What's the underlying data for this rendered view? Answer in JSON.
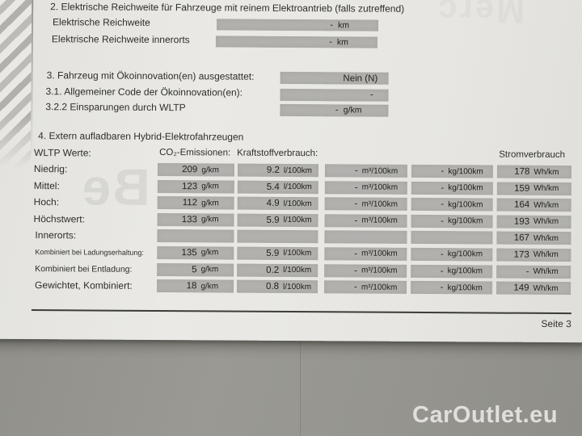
{
  "page": {
    "number_label": "Seite 3",
    "watermark": "CarOutlet.eu"
  },
  "ghosts": {
    "middle_left": "Be",
    "top_right": "Merc"
  },
  "section2": {
    "title": "2. Elektrische Reichweite für Fahrzeuge mit reinem Elektroantrieb (falls zutreffend)",
    "fields": [
      {
        "label": "Elektrische Reichweite",
        "value": "-",
        "unit": "km"
      },
      {
        "label": "Elektrische Reichweite innerorts",
        "value": "-",
        "unit": "km"
      }
    ]
  },
  "section3": {
    "fields": [
      {
        "label": "3. Fahrzeug mit Ökoinnovation(en) ausgestattet:",
        "value": "Nein (N)",
        "unit": ""
      },
      {
        "label": "3.1. Allgemeiner Code der Ökoinnovation(en):",
        "value": "-",
        "unit": ""
      },
      {
        "label": "3.2.2 Einsparungen durch WLTP",
        "value": "-",
        "unit": "g/km"
      }
    ]
  },
  "section4": {
    "title": "4. Extern aufladbaren Hybrid-Elektrofahrzeugen",
    "header": {
      "wltp": "WLTP Werte:",
      "co2": "CO₂-Emissionen:",
      "fuel": "Kraftstoffverbrauch:",
      "power": "Stromverbrauch"
    },
    "rows": [
      {
        "label": "Niedrig:",
        "cells": [
          {
            "v": "209",
            "u": "g/km"
          },
          {
            "v": "9.2",
            "u": "l/100km"
          },
          {
            "v": "-",
            "u": "m³/100km"
          },
          {
            "v": "-",
            "u": "kg/100km"
          },
          {
            "v": "178",
            "u": "Wh/km"
          }
        ]
      },
      {
        "label": "Mittel:",
        "cells": [
          {
            "v": "123",
            "u": "g/km"
          },
          {
            "v": "5.4",
            "u": "l/100km"
          },
          {
            "v": "-",
            "u": "m³/100km"
          },
          {
            "v": "-",
            "u": "kg/100km"
          },
          {
            "v": "159",
            "u": "Wh/km"
          }
        ]
      },
      {
        "label": "Hoch:",
        "cells": [
          {
            "v": "112",
            "u": "g/km"
          },
          {
            "v": "4.9",
            "u": "l/100km"
          },
          {
            "v": "-",
            "u": "m³/100km"
          },
          {
            "v": "-",
            "u": "kg/100km"
          },
          {
            "v": "164",
            "u": "Wh/km"
          }
        ]
      },
      {
        "label": "Höchstwert:",
        "cells": [
          {
            "v": "133",
            "u": "g/km"
          },
          {
            "v": "5.9",
            "u": "l/100km"
          },
          {
            "v": "-",
            "u": "m³/100km"
          },
          {
            "v": "-",
            "u": "kg/100km"
          },
          {
            "v": "193",
            "u": "Wh/km"
          }
        ]
      },
      {
        "label": "Innerorts:",
        "cells": [
          {
            "v": "",
            "u": ""
          },
          {
            "v": "",
            "u": ""
          },
          {
            "v": "",
            "u": ""
          },
          {
            "v": "",
            "u": ""
          },
          {
            "v": "167",
            "u": "Wh/km"
          }
        ]
      },
      {
        "label": "Kombiniert bei Ladungserhaltung:",
        "cells": [
          {
            "v": "135",
            "u": "g/km"
          },
          {
            "v": "5.9",
            "u": "l/100km"
          },
          {
            "v": "-",
            "u": "m³/100km"
          },
          {
            "v": "-",
            "u": "kg/100km"
          },
          {
            "v": "173",
            "u": "Wh/km"
          }
        ]
      },
      {
        "label": "Kombiniert bei Entladung:",
        "cells": [
          {
            "v": "5",
            "u": "g/km"
          },
          {
            "v": "0.2",
            "u": "l/100km"
          },
          {
            "v": "-",
            "u": "m³/100km"
          },
          {
            "v": "-",
            "u": "kg/100km"
          },
          {
            "v": "-",
            "u": "Wh/km"
          }
        ]
      },
      {
        "label": "Gewichtet, Kombiniert:",
        "cells": [
          {
            "v": "18",
            "u": "g/km"
          },
          {
            "v": "0.8",
            "u": "l/100km"
          },
          {
            "v": "-",
            "u": "m³/100km"
          },
          {
            "v": "-",
            "u": "kg/100km"
          },
          {
            "v": "149",
            "u": "Wh/km"
          }
        ]
      }
    ]
  }
}
